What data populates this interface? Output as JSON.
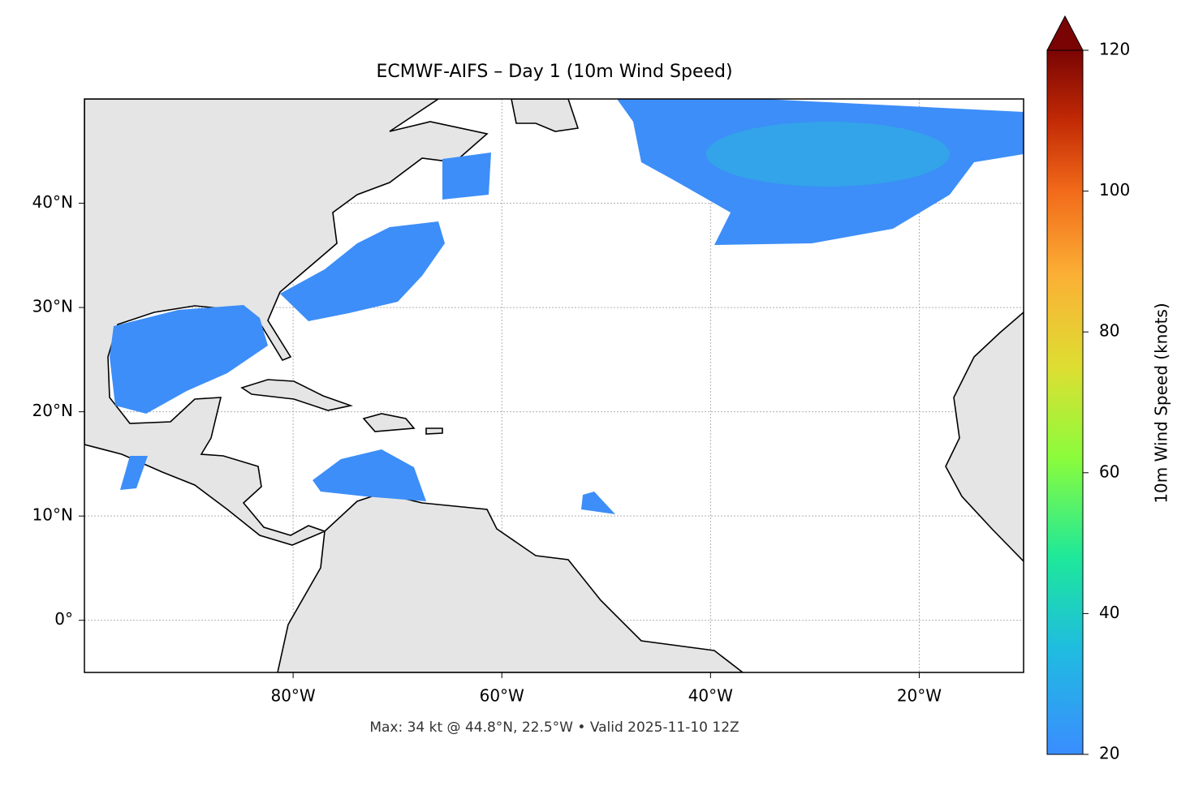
{
  "map": {
    "title": "ECMWF-AIFS – Day 1 (10m Wind Speed)",
    "footer": "Max: 34 kt @ 44.8°N, 22.5°W • Valid 2025-11-10 12Z",
    "xlim": [
      -100,
      -10
    ],
    "ylim": [
      -5,
      50
    ],
    "grid": true,
    "xticks": [
      {
        "value": -80,
        "label": "80°W"
      },
      {
        "value": -60,
        "label": "60°W"
      },
      {
        "value": -40,
        "label": "40°W"
      },
      {
        "value": -20,
        "label": "20°W"
      }
    ],
    "yticks": [
      {
        "value": 0,
        "label": "0°"
      },
      {
        "value": 10,
        "label": "10°N"
      },
      {
        "value": 20,
        "label": "20°N"
      },
      {
        "value": 30,
        "label": "30°N"
      },
      {
        "value": 40,
        "label": "40°N"
      }
    ],
    "colorbar": {
      "label": "10m Wind Speed (knots)",
      "lim": [
        20,
        120
      ],
      "ticks": [
        20,
        40,
        60,
        80,
        100,
        120
      ]
    }
  }
}
